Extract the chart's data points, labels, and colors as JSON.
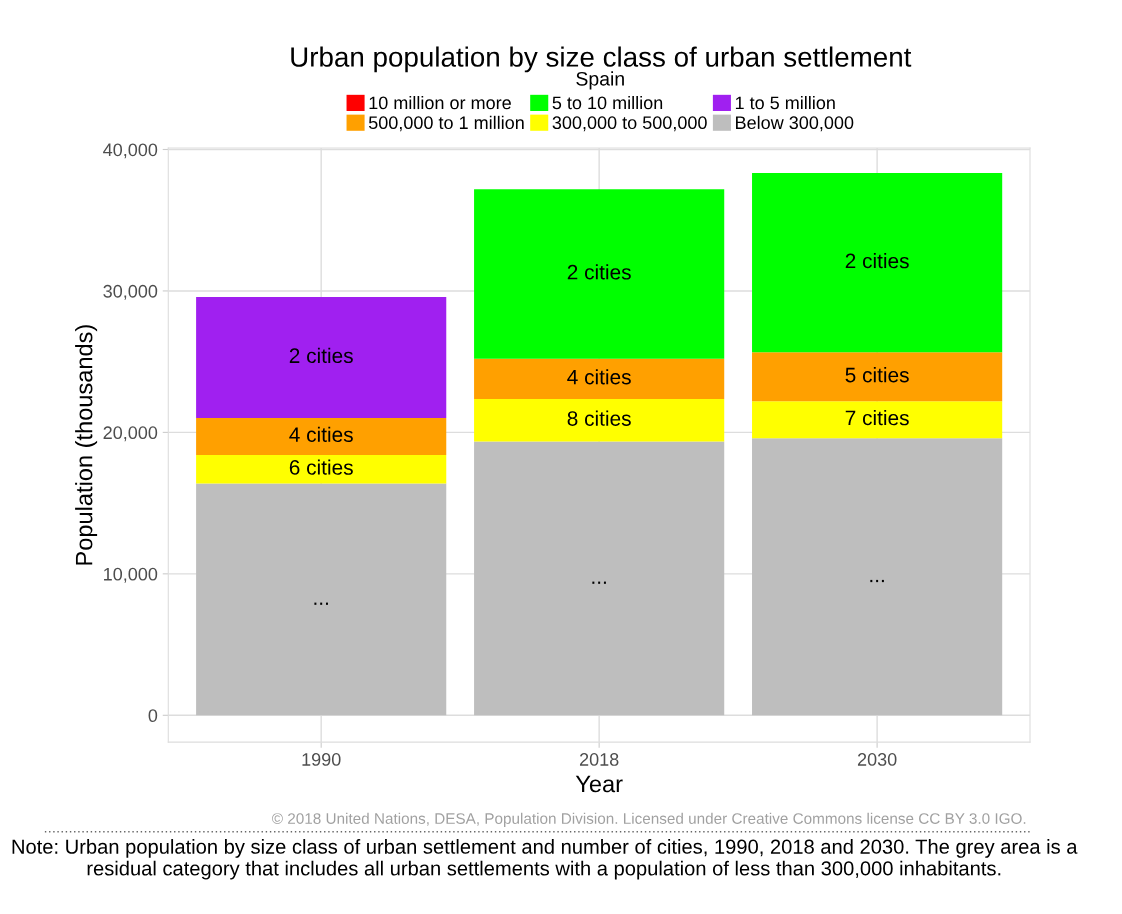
{
  "chart_data": {
    "type": "bar",
    "title": "Urban population by size class of urban settlement",
    "subtitle": "Spain",
    "xlabel": "Year",
    "ylabel": "Population (thousands)",
    "categories": [
      "1990",
      "2018",
      "2030"
    ],
    "stacked": true,
    "series": [
      {
        "name": "Below 300,000",
        "color": "#bebebe",
        "values": [
          16380,
          19350,
          19590
        ]
      },
      {
        "name": "300,000 to 500,000",
        "color": "#ffff00",
        "values": [
          2030,
          3010,
          2610
        ]
      },
      {
        "name": "500,000 to 1 million",
        "color": "#ffa000",
        "values": [
          2610,
          2850,
          3460
        ]
      },
      {
        "name": "1 to 5 million",
        "color": "#a020f0",
        "values": [
          8550,
          null,
          null
        ]
      },
      {
        "name": "5 to 10 million",
        "color": "#00ff00",
        "values": [
          null,
          11980,
          12670
        ]
      },
      {
        "name": "10 million or more",
        "color": "#ff0000",
        "values": [
          null,
          null,
          null
        ]
      }
    ],
    "ylim": [
      -1900,
      40100
    ],
    "yticks": [
      {
        "value": 0,
        "label": "0"
      },
      {
        "value": 10000,
        "label": "10,000"
      },
      {
        "value": 20000,
        "label": "20,000"
      },
      {
        "value": 30000,
        "label": "30,000"
      },
      {
        "value": 40000,
        "label": "40,000"
      }
    ],
    "grid": true,
    "legend": "top",
    "annotations": [
      "...",
      "6 cities",
      "4 cities",
      "2 cities",
      "...",
      "8 cities",
      "4 cities",
      "2 cities",
      "...",
      "7 cities",
      "5 cities",
      "2 cities",
      "© 2018 United Nations, DESA, Population Division. Licensed under Creative Commons license CC BY 3.0 IGO.",
      "Note: Urban population by size class of urban settlement and number of cities, 1990, 2018 and 2030. The grey area is a residual category that includes all urban settlements with a population of less than 300,000 inhabitants."
    ]
  }
}
